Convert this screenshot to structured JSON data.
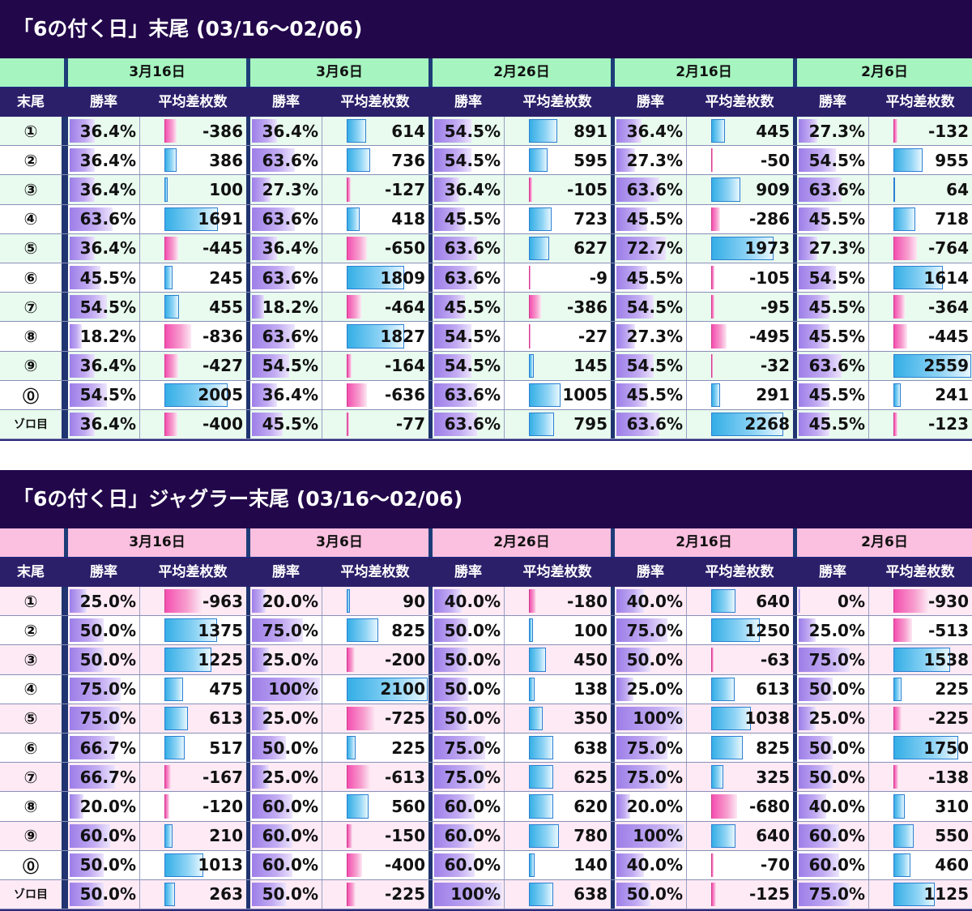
{
  "columns": {
    "label": "末尾",
    "rate": "勝率",
    "diff": "平均差枚数"
  },
  "dates": [
    "3月16日",
    "3月6日",
    "2月26日",
    "2月16日",
    "2月6日"
  ],
  "row_labels": [
    "①",
    "②",
    "③",
    "④",
    "⑤",
    "⑥",
    "⑦",
    "⑧",
    "⑨",
    "⓪",
    "ゾロ目"
  ],
  "colors": {
    "title_bg": "#22074a",
    "header_bg": "#2c1f6a",
    "section1_date_bg": "#a6f5c0",
    "section1_alt_row": "#e9fbef",
    "section2_date_bg": "#fbbfdf",
    "section2_alt_row": "#fdeaf4",
    "rate_bar": "#b295ef",
    "positive_bar": "#5fc3ee",
    "negative_bar": "#f672bd"
  },
  "sections": [
    {
      "title": "「6の付く日」末尾 (03/16～02/06)",
      "max_abs": 2559,
      "rows": [
        {
          "rate": [
            "36.4%",
            "36.4%",
            "54.5%",
            "36.4%",
            "27.3%"
          ],
          "diff": [
            "-386",
            "614",
            "891",
            "445",
            "-132"
          ]
        },
        {
          "rate": [
            "36.4%",
            "63.6%",
            "54.5%",
            "27.3%",
            "54.5%"
          ],
          "diff": [
            "386",
            "736",
            "595",
            "-50",
            "955"
          ]
        },
        {
          "rate": [
            "36.4%",
            "27.3%",
            "36.4%",
            "63.6%",
            "63.6%"
          ],
          "diff": [
            "100",
            "-127",
            "-105",
            "909",
            "64"
          ]
        },
        {
          "rate": [
            "63.6%",
            "63.6%",
            "45.5%",
            "45.5%",
            "45.5%"
          ],
          "diff": [
            "1691",
            "418",
            "723",
            "-286",
            "718"
          ]
        },
        {
          "rate": [
            "36.4%",
            "36.4%",
            "63.6%",
            "72.7%",
            "27.3%"
          ],
          "diff": [
            "-445",
            "-650",
            "627",
            "1973",
            "-764"
          ]
        },
        {
          "rate": [
            "45.5%",
            "63.6%",
            "63.6%",
            "45.5%",
            "54.5%"
          ],
          "diff": [
            "245",
            "1809",
            "-9",
            "-105",
            "1614"
          ]
        },
        {
          "rate": [
            "54.5%",
            "18.2%",
            "45.5%",
            "54.5%",
            "45.5%"
          ],
          "diff": [
            "455",
            "-464",
            "-386",
            "-95",
            "-364"
          ]
        },
        {
          "rate": [
            "18.2%",
            "63.6%",
            "54.5%",
            "27.3%",
            "45.5%"
          ],
          "diff": [
            "-836",
            "1827",
            "-27",
            "-495",
            "-445"
          ]
        },
        {
          "rate": [
            "36.4%",
            "54.5%",
            "54.5%",
            "54.5%",
            "63.6%"
          ],
          "diff": [
            "-427",
            "-164",
            "145",
            "-32",
            "2559"
          ]
        },
        {
          "rate": [
            "54.5%",
            "36.4%",
            "63.6%",
            "45.5%",
            "45.5%"
          ],
          "diff": [
            "2005",
            "-636",
            "1005",
            "291",
            "241"
          ]
        },
        {
          "rate": [
            "36.4%",
            "45.5%",
            "63.6%",
            "63.6%",
            "45.5%"
          ],
          "diff": [
            "-400",
            "-77",
            "795",
            "2268",
            "-123"
          ]
        }
      ]
    },
    {
      "title": "「6の付く日」ジャグラー末尾 (03/16～02/06)",
      "max_abs": 2100,
      "rows": [
        {
          "rate": [
            "25.0%",
            "20.0%",
            "40.0%",
            "40.0%",
            "0%"
          ],
          "diff": [
            "-963",
            "90",
            "-180",
            "640",
            "-930"
          ]
        },
        {
          "rate": [
            "50.0%",
            "75.0%",
            "50.0%",
            "75.0%",
            "25.0%"
          ],
          "diff": [
            "1375",
            "825",
            "100",
            "1250",
            "-513"
          ]
        },
        {
          "rate": [
            "50.0%",
            "25.0%",
            "50.0%",
            "50.0%",
            "75.0%"
          ],
          "diff": [
            "1225",
            "-200",
            "450",
            "-63",
            "1538"
          ]
        },
        {
          "rate": [
            "75.0%",
            "100%",
            "50.0%",
            "25.0%",
            "50.0%"
          ],
          "diff": [
            "475",
            "2100",
            "138",
            "613",
            "225"
          ]
        },
        {
          "rate": [
            "75.0%",
            "25.0%",
            "50.0%",
            "100%",
            "25.0%"
          ],
          "diff": [
            "613",
            "-725",
            "350",
            "1038",
            "-225"
          ]
        },
        {
          "rate": [
            "66.7%",
            "50.0%",
            "75.0%",
            "75.0%",
            "50.0%"
          ],
          "diff": [
            "517",
            "225",
            "638",
            "825",
            "1750"
          ]
        },
        {
          "rate": [
            "66.7%",
            "25.0%",
            "75.0%",
            "75.0%",
            "50.0%"
          ],
          "diff": [
            "-167",
            "-613",
            "625",
            "325",
            "-138"
          ]
        },
        {
          "rate": [
            "20.0%",
            "60.0%",
            "60.0%",
            "20.0%",
            "40.0%"
          ],
          "diff": [
            "-120",
            "560",
            "620",
            "-680",
            "310"
          ]
        },
        {
          "rate": [
            "60.0%",
            "60.0%",
            "60.0%",
            "100%",
            "60.0%"
          ],
          "diff": [
            "210",
            "-150",
            "780",
            "640",
            "550"
          ]
        },
        {
          "rate": [
            "50.0%",
            "60.0%",
            "60.0%",
            "40.0%",
            "60.0%"
          ],
          "diff": [
            "1013",
            "-400",
            "140",
            "-70",
            "460"
          ]
        },
        {
          "rate": [
            "50.0%",
            "50.0%",
            "100%",
            "50.0%",
            "75.0%"
          ],
          "diff": [
            "263",
            "-225",
            "638",
            "-125",
            "1125"
          ]
        }
      ]
    }
  ]
}
